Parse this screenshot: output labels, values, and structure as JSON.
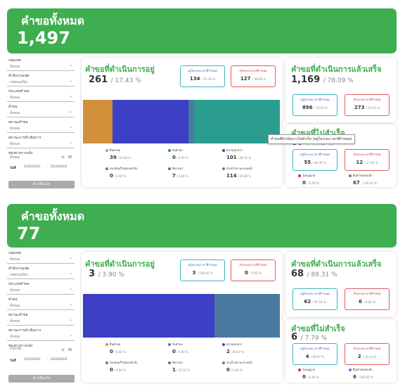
{
  "filters": {
    "group": {
      "label": "กลุ่มเขต",
      "value": "ทั้งหมด"
    },
    "office": {
      "label": "สำนักงานเขต",
      "value": "เขตดอนเมือง"
    },
    "type": {
      "label": "ประเภทคำขอ",
      "value": "ทั้งหมด"
    },
    "request": {
      "label": "คำขอ",
      "value": "ทั้งหมด"
    },
    "status": {
      "label": "สถานะคำขอ",
      "value": "ทั้งหมด"
    },
    "proc": {
      "label": "สถานะการดำเนินการ",
      "value": "ทั้งหมด"
    },
    "channel_label": "ช่องทางการแจ้ง",
    "date_label": "วันที่",
    "date_sep": "-",
    "clear": "ล้างเงื่อนไข"
  },
  "d1": {
    "banner": {
      "title": "คำขอทั้งหมด",
      "value": "1,497"
    },
    "channel": "ทั้งหมด",
    "date_from": "2/10/2023",
    "date_to": "25/4/2024",
    "progress": {
      "title": "คำขอที่ดำเนินการอยู่",
      "value": "261",
      "pct": "/ 17.43 %",
      "within": {
        "label": "อยู่ในระยะเวลาที่กำหนด",
        "value": "134",
        "pct": "/ 51.34 %"
      },
      "over": {
        "label": "เกินระยะเวลาที่กำหนด",
        "value": "127",
        "pct": "/ 48.66 %"
      },
      "segments": [
        {
          "name": "ยื่นคำขอ",
          "pct": 14.94,
          "color": "#d1903a"
        },
        {
          "name": "รับคำขอ",
          "pct": 0,
          "color": "#2e86c1"
        },
        {
          "name": "ตรวจเอกสาร",
          "pct": 38.7,
          "color": "#3d3fc4"
        },
        {
          "name": "ส่งกลับแก้ไข/ออกคำสั่ง",
          "pct": 0,
          "color": "#8e5fc2"
        },
        {
          "name": "พิจารณา",
          "pct": 2.68,
          "color": "#4a7aa0"
        },
        {
          "name": "นำเข้าสถานะล่วงหน้า",
          "pct": 43.68,
          "color": "#2a9d8f"
        }
      ],
      "legend": [
        {
          "name": "ยื่นคำขอ",
          "value": "39",
          "pct": "/ 14.94 %",
          "color": "#d1903a"
        },
        {
          "name": "รับคำขอ",
          "value": "0",
          "pct": "/ 0.00 %",
          "color": "#2e86c1"
        },
        {
          "name": "ตรวจเอกสาร",
          "value": "101",
          "pct": "/ 38.70 %",
          "color": "#3d3fc4"
        },
        {
          "name": "ส่งกลับแก้ไข/ออกคำสั่ง",
          "value": "0",
          "pct": "/ 0.00 %",
          "color": "#8e5fc2"
        },
        {
          "name": "พิจารณา",
          "value": "7",
          "pct": "/ 2.68 %",
          "color": "#4a7aa0"
        },
        {
          "name": "นำเข้าสถานะล่วงหน้า",
          "value": "114",
          "pct": "/ 43.68 %",
          "color": "#2a9d8f"
        }
      ]
    },
    "done": {
      "title": "คำขอที่ดำเนินการแล้วเสร็จ",
      "value": "1,169",
      "pct": "/ 78.09 %",
      "within": {
        "label": "อยู่ในระยะเวลาที่กำหนด",
        "value": "896",
        "pct": "/ 76.65 %"
      },
      "over": {
        "label": "เกินระยะเวลาที่กำหนด",
        "value": "273",
        "pct": "/ 23.35 %"
      }
    },
    "failed": {
      "title": "คำขอที่ไม่สำเร็จ",
      "value": "67",
      "pct": "/ 4.48 %",
      "within": {
        "label": "อยู่ในระยะเวลาที่กำหนด",
        "value": "55",
        "pct": "/ 82.09 %"
      },
      "over": {
        "label": "เกินระยะเวลาที่กำหนด",
        "value": "12",
        "pct": "/ 17.91 %"
      },
      "reject": {
        "name": "ไม่อนุญาต",
        "value": "0",
        "pct": "/ 0.00 %",
        "color": "#d03030"
      },
      "cancel": {
        "name": "ยื่นคำขอ/ยกเลิก",
        "value": "67",
        "pct": "/ 100.00 %",
        "color": "#8e5fc2"
      },
      "tooltip": "คำขอที่ดำเนินการไม่สำเร็จ (อยู่ในระยะเวลาที่กำหนด)"
    }
  },
  "d2": {
    "banner": {
      "title": "คำขอทั้งหมด",
      "value": "77"
    },
    "channel": "ONLINE",
    "date_from": "2/10/2023",
    "date_to": "25/4/2024",
    "progress": {
      "title": "คำขอที่ดำเนินการอยู่",
      "value": "3",
      "pct": "/ 3.90 %",
      "within": {
        "label": "อยู่ในระยะเวลาที่กำหนด",
        "value": "3",
        "pct": "/ 100.00 %"
      },
      "over": {
        "label": "เกินระยะเวลาที่กำหนด",
        "value": "0",
        "pct": "/ 0.00 %"
      },
      "segments": [
        {
          "name": "ยื่นคำขอ",
          "pct": 0,
          "color": "#d1903a"
        },
        {
          "name": "รับคำขอ",
          "pct": 0,
          "color": "#2e86c1"
        },
        {
          "name": "ตรวจเอกสาร",
          "pct": 66.67,
          "color": "#3d3fc4"
        },
        {
          "name": "ส่งกลับแก้ไข/ออกคำสั่ง",
          "pct": 0,
          "color": "#8e5fc2"
        },
        {
          "name": "พิจารณา",
          "pct": 33.33,
          "color": "#4a7aa0"
        },
        {
          "name": "นำเข้าสถานะล่วงหน้า",
          "pct": 0,
          "color": "#2a9d8f"
        }
      ],
      "legend": [
        {
          "name": "ยื่นคำขอ",
          "value": "0",
          "pct": "/ 0.00 %",
          "color": "#d1903a"
        },
        {
          "name": "รับคำขอ",
          "value": "0",
          "pct": "/ 0.00 %",
          "color": "#2e86c1"
        },
        {
          "name": "ตรวจเอกสาร",
          "value": "2",
          "pct": "/ 66.67 %",
          "color": "#3d3fc4"
        },
        {
          "name": "ส่งกลับแก้ไข/ออกคำสั่ง",
          "value": "0",
          "pct": "/ 0.00 %",
          "color": "#8e5fc2"
        },
        {
          "name": "พิจารณา",
          "value": "1",
          "pct": "/ 33.33 %",
          "color": "#4a7aa0"
        },
        {
          "name": "นำเข้าสถานะล่วงหน้า",
          "value": "0",
          "pct": "/ 0.00 %",
          "color": "#2a9d8f"
        }
      ]
    },
    "done": {
      "title": "คำขอที่ดำเนินการแล้วเสร็จ",
      "value": "68",
      "pct": "/ 88.31 %",
      "within": {
        "label": "อยู่ในระยะเวลาที่กำหนด",
        "value": "62",
        "pct": "/ 91.18 %"
      },
      "over": {
        "label": "เกินระยะเวลาที่กำหนด",
        "value": "6",
        "pct": "/ 8.82 %"
      }
    },
    "failed": {
      "title": "คำขอที่ไม่สำเร็จ",
      "value": "6",
      "pct": "/ 7.79 %",
      "within": {
        "label": "อยู่ในระยะเวลาที่กำหนด",
        "value": "4",
        "pct": "/ 66.67 %"
      },
      "over": {
        "label": "เกินระยะเวลาที่กำหนด",
        "value": "2",
        "pct": "/ 33.33 %"
      },
      "reject": {
        "name": "ไม่อนุญาต",
        "value": "0",
        "pct": "/ 0.00 %",
        "color": "#d03030"
      },
      "cancel": {
        "name": "ยื่นคำขอ/ยกเลิก",
        "value": "6",
        "pct": "/ 100.00 %",
        "color": "#8e5fc2"
      }
    }
  }
}
